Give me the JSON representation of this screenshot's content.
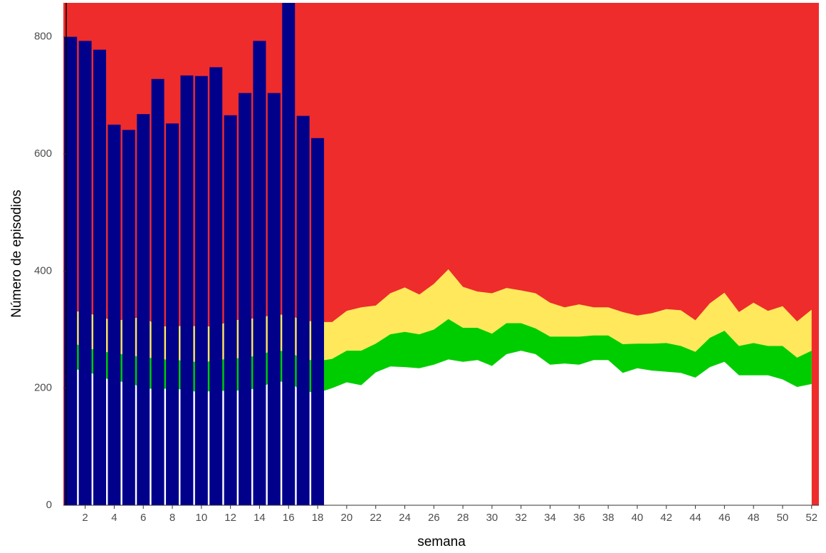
{
  "chart_data": [
    {
      "type": "area",
      "x_label": "semana",
      "y_label": "Número de episodios",
      "background_color": "#ee2c2c",
      "x": [
        1,
        2,
        3,
        4,
        5,
        6,
        7,
        8,
        9,
        10,
        11,
        12,
        13,
        14,
        15,
        16,
        17,
        18,
        19,
        20,
        21,
        22,
        23,
        24,
        25,
        26,
        27,
        28,
        29,
        30,
        31,
        32,
        33,
        34,
        35,
        36,
        37,
        38,
        39,
        40,
        41,
        42,
        43,
        44,
        45,
        46,
        47,
        48,
        49,
        50,
        51,
        52
      ],
      "series": [
        {
          "color": "#ffe85c",
          "values": [
            332,
            330,
            322,
            315,
            318,
            322,
            306,
            305,
            307,
            305,
            306,
            315,
            318,
            320,
            326,
            325,
            316,
            313,
            313,
            332,
            338,
            341,
            362,
            372,
            360,
            378,
            403,
            373,
            365,
            362,
            371,
            367,
            362,
            346,
            338,
            343,
            338,
            338,
            330,
            324,
            328,
            335,
            333,
            316,
            345,
            363,
            330,
            346,
            332,
            340,
            314,
            334
          ]
        },
        {
          "color": "#00cd00",
          "values": [
            278,
            270,
            263,
            260,
            256,
            253,
            250,
            248,
            247,
            243,
            248,
            250,
            252,
            256,
            265,
            262,
            250,
            246,
            250,
            264,
            264,
            276,
            292,
            296,
            292,
            300,
            318,
            303,
            303,
            293,
            311,
            311,
            302,
            288,
            288,
            288,
            290,
            290,
            275,
            276,
            276,
            277,
            272,
            262,
            286,
            298,
            272,
            277,
            272,
            272,
            252,
            264
          ]
        },
        {
          "color": "#ffffff",
          "values": [
            233,
            230,
            220,
            212,
            210,
            200,
            198,
            200,
            196,
            193,
            196,
            195,
            197,
            200,
            212,
            210,
            195,
            192,
            200,
            210,
            205,
            227,
            237,
            236,
            234,
            240,
            249,
            245,
            248,
            238,
            258,
            264,
            258,
            240,
            242,
            240,
            248,
            248,
            226,
            234,
            230,
            228,
            226,
            218,
            236,
            245,
            222,
            222,
            222,
            215,
            202,
            207
          ]
        }
      ],
      "xlim": [
        0.5,
        52.5
      ],
      "ylim": [
        0,
        858
      ],
      "xticks": [
        2,
        4,
        6,
        8,
        10,
        12,
        14,
        16,
        18,
        20,
        22,
        24,
        26,
        28,
        30,
        32,
        34,
        36,
        38,
        40,
        42,
        44,
        46,
        48,
        50,
        52
      ],
      "yticks": [
        0,
        200,
        400,
        600,
        800
      ]
    },
    {
      "type": "bar",
      "color": "#00008b",
      "x": [
        1,
        2,
        3,
        4,
        5,
        6,
        7,
        8,
        9,
        10,
        11,
        12,
        13,
        14,
        15,
        16,
        17,
        18
      ],
      "values": [
        800,
        793,
        778,
        650,
        641,
        668,
        728,
        652,
        734,
        733,
        748,
        666,
        704,
        793,
        704,
        870,
        665,
        627
      ]
    }
  ]
}
